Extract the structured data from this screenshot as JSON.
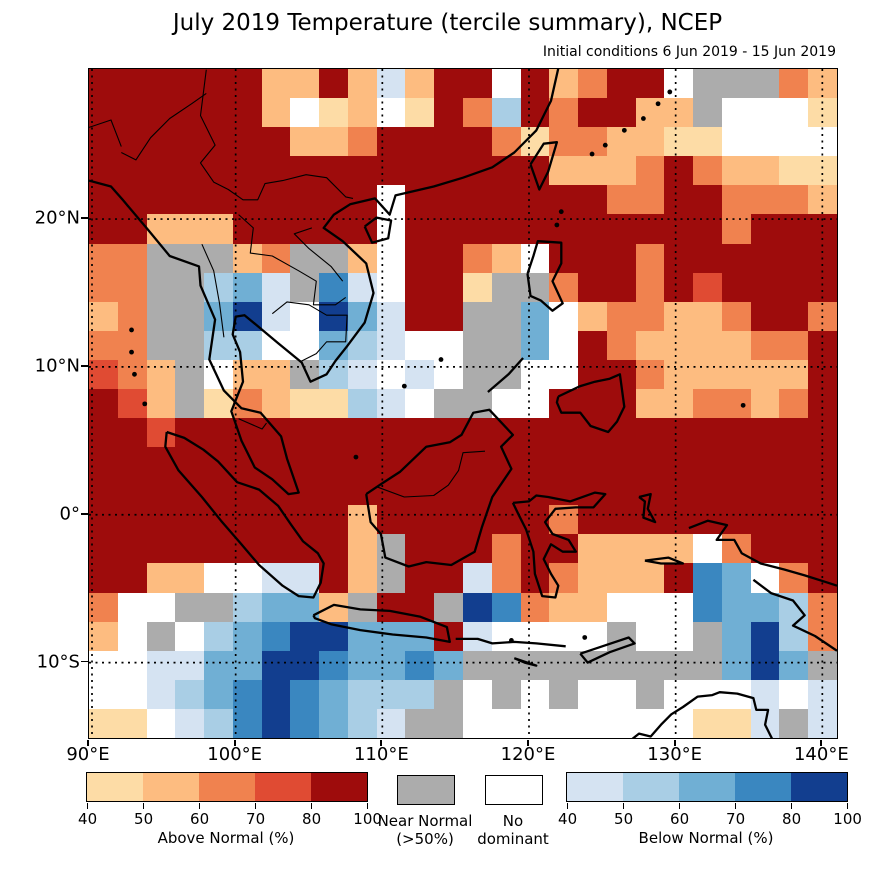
{
  "title": "July 2019 Temperature (tercile summary), NCEP",
  "subtitle": "Initial conditions 6 Jun 2019 - 15 Jun 2019",
  "axes": {
    "lon_min": 90,
    "lon_max": 141,
    "lat_min": -15.1,
    "lat_max": 30.15,
    "x_ticks": [
      {
        "label": "90°E",
        "lon": 90
      },
      {
        "label": "100°E",
        "lon": 100
      },
      {
        "label": "110°E",
        "lon": 110
      },
      {
        "label": "120°E",
        "lon": 120
      },
      {
        "label": "130°E",
        "lon": 130
      },
      {
        "label": "140°E",
        "lon": 140
      }
    ],
    "y_ticks": [
      {
        "label": "20°N",
        "lat": 20
      },
      {
        "label": "10°N",
        "lat": 10
      },
      {
        "label": "0°",
        "lat": 0
      },
      {
        "label": "10°S",
        "lat": -10
      }
    ],
    "grid_lons": [
      90,
      100,
      110,
      120,
      130,
      140
    ],
    "grid_lats": [
      20,
      10,
      0,
      -10
    ]
  },
  "chart_data": {
    "type": "heatmap",
    "title": "July 2019 Temperature (tercile summary), NCEP",
    "subtitle": "Initial conditions 6 Jun 2019 - 15 Jun 2019",
    "region": {
      "lon_range": [
        90,
        141
      ],
      "lat_range": [
        -15.1,
        30.15
      ]
    },
    "legend_position": "bottom",
    "grid_on": true,
    "palette": {
      "1": "#FDDCA6",
      "2": "#FDBC80",
      "3": "#F0824F",
      "4": "#E04B33",
      "5": "#9E0C0C",
      "G": "#ACACAC",
      "W": "#FFFFFF",
      "q": "#D5E3F2",
      "r": "#A9CEE5",
      "s": "#70AFD4",
      "t": "#3A87C0",
      "u": "#123E8F"
    },
    "code_meaning": {
      "1": "Above Normal 40-50%",
      "2": "Above Normal 50-60%",
      "3": "Above Normal 60-70%",
      "4": "Above Normal 70-80%",
      "5": "Above Normal 80-100%",
      "G": "Near Normal (>50%)",
      "W": "No dominant",
      "q": "Below Normal 40-50%",
      "r": "Below Normal 50-60%",
      "s": "Below Normal 60-70%",
      "t": "Below Normal 70-80%",
      "u": "Below Normal 80-100%"
    },
    "grid": {
      "cols": 26,
      "rows": 23,
      "origin": "top-left = 90E,30.15N; each cell ~2 deg lon x 2 deg lat",
      "rows_codes": [
        "5555552252q255W52355WGGG32",
        "5555552W12W153r535522GWWW1",
        "5555555223555531332211WWWW",
        "55555555555555552223532211",
        "5555555555W555555533553332",
        "5522255555W555555555553555",
        "33GGG23GG2W5532W5553555555",
        "33GGrsqGtqW551GG3553545555",
        "23GGsuqWusq55GGsW233223553",
        "33GGrrWWsrqWWGGsW532222335",
        "432GW22GrqWqWGGWW553222225",
        "542G13211rqWGGWW5552233235",
        "55455555555555555555555555",
        "55555555555555555555555555",
        "55555555555555555555555555",
        "55555555525555553555555555",
        "5555555552G5553552222W3555",
        "5522WWqq52G55q3532225tsW35",
        "3WWGGrss2G55Gut322WWWtssr3",
        "2WGWrstuusss5qWWWWGWWGsur3",
        "WWqqssuutsstsGGGGGGGGGsusG",
        "WWqrstutsrrrGWGWGWWGWWWqWq",
        "11WqrtutsrqGGWWWWWWWW11qGq"
      ]
    }
  },
  "legend": {
    "above": {
      "caption": "Above Normal (%)",
      "tick_labels": [
        "40",
        "50",
        "60",
        "70",
        "80",
        "100"
      ],
      "colors": [
        "#FDDCA6",
        "#FDBC80",
        "#F0824F",
        "#E04B33",
        "#9E0C0C"
      ]
    },
    "near_normal": {
      "line1": "Near Normal",
      "line2": "(>50%)",
      "color": "#ACACAC"
    },
    "no_dominant": {
      "line1": "No",
      "line2": "dominant",
      "color": "#FFFFFF"
    },
    "below": {
      "caption": "Below Normal (%)",
      "tick_labels": [
        "40",
        "50",
        "60",
        "70",
        "80",
        "100"
      ],
      "colors": [
        "#D5E3F2",
        "#A9CEE5",
        "#70AFD4",
        "#3A87C0",
        "#123E8F"
      ]
    }
  }
}
